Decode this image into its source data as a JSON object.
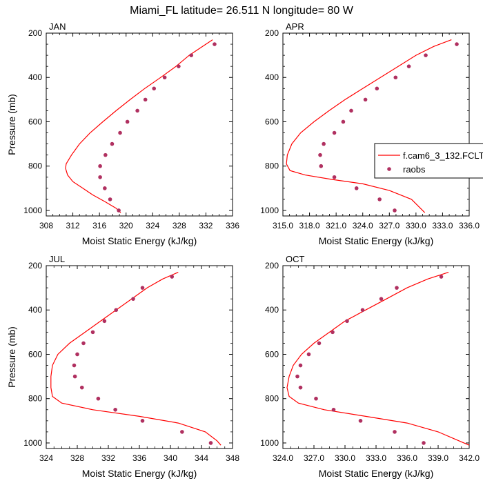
{
  "title": "Miami_FL  latitude= 26.511 N longitude= 80 W",
  "colors": {
    "model": "#ff0000",
    "obs": "#b03060",
    "axis": "#000000"
  },
  "legend": {
    "model_label": "f.cam6_3_132.FCLT",
    "obs_label": "raobs"
  },
  "chart_data": [
    {
      "type": "line",
      "panel_label": "JAN",
      "xlabel": "Moist Static Energy (kJ/kg)",
      "ylabel": "Pressure (mb)",
      "xlim": [
        308,
        336
      ],
      "ylim": [
        1025,
        200
      ],
      "xticks": [
        "308",
        "312",
        "316",
        "320",
        "324",
        "328",
        "332",
        "336"
      ],
      "yticks": [
        "200",
        "400",
        "600",
        "800",
        "1000"
      ],
      "series": [
        {
          "kind": "line",
          "x": [
            333.0,
            331.5,
            329.5,
            327.5,
            325.2,
            322.8,
            320.6,
            318.5,
            316.5,
            314.6,
            313.0,
            311.8,
            311.0,
            310.9,
            311.2,
            312.0,
            313.5,
            315.0,
            316.8,
            318.5,
            319.2
          ],
          "y": [
            230,
            260,
            300,
            350,
            400,
            450,
            500,
            550,
            600,
            650,
            700,
            750,
            790,
            810,
            840,
            870,
            900,
            930,
            960,
            990,
            1010
          ]
        },
        {
          "kind": "scatter",
          "x": [
            333.3,
            329.8,
            327.9,
            325.8,
            324.2,
            322.9,
            321.7,
            320.2,
            319.1,
            317.9,
            316.9,
            316.1,
            316.1,
            316.8,
            317.6,
            318.9
          ],
          "y": [
            250,
            300,
            350,
            400,
            450,
            500,
            550,
            600,
            650,
            700,
            750,
            800,
            850,
            900,
            950,
            1000
          ]
        }
      ]
    },
    {
      "type": "line",
      "panel_label": "APR",
      "xlabel": "Moist Static Energy (kJ/kg)",
      "ylabel": "",
      "xlim": [
        315,
        336
      ],
      "ylim": [
        1025,
        200
      ],
      "xticks": [
        "315.0",
        "318.0",
        "321.0",
        "324.0",
        "327.0",
        "330.0",
        "333.0",
        "336.0"
      ],
      "yticks": [
        "200",
        "400",
        "600",
        "800",
        "1000"
      ],
      "series": [
        {
          "kind": "line",
          "x": [
            334.0,
            332.0,
            330.0,
            328.0,
            326.0,
            324.0,
            322.0,
            320.2,
            318.5,
            317.0,
            316.0,
            315.5,
            315.4,
            315.8,
            317.5,
            320.5,
            324.0,
            327.0,
            329.5,
            330.5,
            331.0
          ],
          "y": [
            230,
            260,
            300,
            350,
            400,
            450,
            500,
            550,
            600,
            650,
            700,
            750,
            790,
            820,
            840,
            860,
            880,
            910,
            950,
            990,
            1010
          ]
        },
        {
          "kind": "scatter",
          "x": [
            334.6,
            331.1,
            329.2,
            327.7,
            325.6,
            324.3,
            322.7,
            321.8,
            320.8,
            319.6,
            319.2,
            319.3,
            320.8,
            323.3,
            325.9,
            327.6
          ],
          "y": [
            250,
            300,
            350,
            400,
            450,
            500,
            550,
            600,
            650,
            700,
            750,
            800,
            850,
            900,
            950,
            1000
          ]
        }
      ]
    },
    {
      "type": "line",
      "panel_label": "JUL",
      "xlabel": "Moist Static Energy (kJ/kg)",
      "ylabel": "Pressure (mb)",
      "xlim": [
        324,
        348
      ],
      "ylim": [
        1025,
        200
      ],
      "xticks": [
        "324",
        "328",
        "332",
        "336",
        "340",
        "344",
        "348"
      ],
      "yticks": [
        "200",
        "400",
        "600",
        "800",
        "1000"
      ],
      "series": [
        {
          "kind": "line",
          "x": [
            341.0,
            339.0,
            337.0,
            335.0,
            333.0,
            331.0,
            329.0,
            327.0,
            325.5,
            324.8,
            324.6,
            324.6,
            324.8,
            326.0,
            330.0,
            336.0,
            341.0,
            344.5,
            346.0,
            346.5
          ],
          "y": [
            230,
            260,
            300,
            350,
            400,
            450,
            500,
            550,
            600,
            650,
            700,
            750,
            790,
            820,
            850,
            880,
            910,
            950,
            990,
            1010
          ]
        },
        {
          "kind": "scatter",
          "x": [
            340.2,
            336.4,
            335.2,
            333.0,
            331.5,
            330.0,
            328.8,
            328.0,
            327.6,
            327.7,
            328.6,
            330.7,
            332.9,
            336.4,
            341.5,
            345.2
          ],
          "y": [
            250,
            300,
            350,
            400,
            450,
            500,
            550,
            600,
            650,
            700,
            750,
            800,
            850,
            900,
            950,
            1000
          ]
        }
      ]
    },
    {
      "type": "line",
      "panel_label": "OCT",
      "xlabel": "Moist Static Energy (kJ/kg)",
      "ylabel": "",
      "xlim": [
        324,
        342
      ],
      "ylim": [
        1025,
        200
      ],
      "xticks": [
        "324.0",
        "327.0",
        "330.0",
        "333.0",
        "336.0",
        "339.0",
        "342.0"
      ],
      "yticks": [
        "200",
        "400",
        "600",
        "800",
        "1000"
      ],
      "series": [
        {
          "kind": "line",
          "x": [
            340.0,
            338.0,
            336.0,
            334.0,
            332.0,
            330.0,
            328.5,
            327.0,
            325.8,
            325.0,
            324.6,
            324.4,
            324.6,
            325.5,
            328.0,
            332.0,
            336.0,
            339.0,
            341.0,
            342.0
          ],
          "y": [
            230,
            260,
            300,
            350,
            400,
            450,
            500,
            550,
            600,
            650,
            700,
            750,
            790,
            820,
            850,
            880,
            910,
            950,
            990,
            1010
          ]
        },
        {
          "kind": "scatter",
          "x": [
            339.3,
            335.0,
            333.5,
            331.7,
            330.2,
            328.8,
            327.5,
            326.5,
            325.7,
            325.4,
            325.7,
            327.2,
            328.9,
            331.5,
            334.8,
            337.6
          ],
          "y": [
            250,
            300,
            350,
            400,
            450,
            500,
            550,
            600,
            650,
            700,
            750,
            800,
            850,
            900,
            950,
            1000
          ]
        }
      ]
    }
  ]
}
